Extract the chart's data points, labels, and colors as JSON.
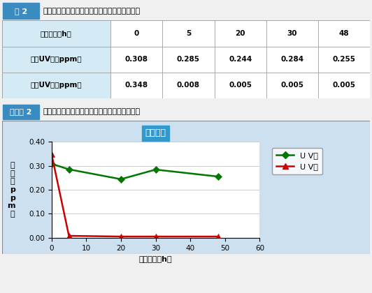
{
  "table_title_box": "表 2",
  "table_title_text": "トルエンに対するトリニティー吸着・分解特性",
  "graph_title_box": "グラフ 2",
  "graph_title_text": "トルエンに対するトリニティー吸着・分解特性",
  "chart_inner_title": "トルエン",
  "time_points": [
    0,
    5,
    20,
    30,
    48
  ],
  "uv_none": [
    0.308,
    0.285,
    0.244,
    0.284,
    0.255
  ],
  "uv_yes": [
    0.348,
    0.008,
    0.005,
    0.005,
    0.005
  ],
  "table_headers": [
    "経過時間（h）",
    "0",
    "5",
    "20",
    "30",
    "48"
  ],
  "row1_label": "濃度UV無（ppm）",
  "row2_label": "濃度UV有（ppm）",
  "row1_vals": [
    "0.308",
    "0.285",
    "0.244",
    "0.284",
    "0.255"
  ],
  "row2_vals": [
    "0.348",
    "0.008",
    "0.005",
    "0.005",
    "0.005"
  ],
  "xlabel": "経過時間（h）",
  "ylabel_lines": [
    "濃",
    "度",
    "（",
    "p",
    "p",
    "m",
    "）"
  ],
  "ylim": [
    0.0,
    0.4
  ],
  "xlim": [
    0,
    60
  ],
  "yticks": [
    0.0,
    0.1,
    0.2,
    0.3,
    0.4
  ],
  "xticks": [
    0,
    10,
    20,
    30,
    40,
    50,
    60
  ],
  "legend_uv_none": "U V無",
  "legend_uv_yes": "U V有",
  "color_green": "#007700",
  "color_red": "#cc0000",
  "color_header_bg": "#d4eaf5",
  "color_row_bg": "#fefef0",
  "color_graph_bg": "#cde0f0",
  "color_plot_bg": "#ffffff",
  "color_title_box": "#3a8bbf",
  "color_inner_title_bg": "#3399cc",
  "color_inner_title_text": "#ffffff",
  "color_table_border": "#999999",
  "fig_bg": "#f0f0f0"
}
